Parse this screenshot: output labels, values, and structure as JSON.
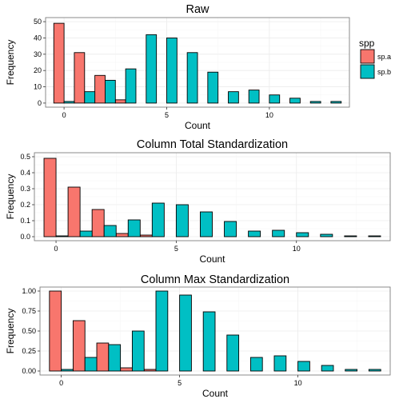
{
  "legend": {
    "title": "spp",
    "items": [
      {
        "label": "sp.a",
        "color": "#F8766D"
      },
      {
        "label": "sp.b",
        "color": "#00BFC4"
      }
    ]
  },
  "chart_data": [
    {
      "type": "bar",
      "title": "Raw",
      "xlabel": "Count",
      "ylabel": "Frequency",
      "x": [
        0,
        1,
        2,
        3,
        4,
        5,
        6,
        7,
        8,
        9,
        10,
        11,
        12,
        13
      ],
      "xticks": [
        "0",
        "5",
        "10"
      ],
      "yticks": [
        "0",
        "10",
        "20",
        "30",
        "40",
        "50"
      ],
      "ylim": [
        0,
        50
      ],
      "series": [
        {
          "name": "sp.a",
          "values": [
            49,
            31,
            17,
            2,
            null,
            null,
            null,
            null,
            null,
            null,
            null,
            null,
            null,
            null
          ]
        },
        {
          "name": "sp.b",
          "values": [
            1,
            7,
            14,
            21,
            42,
            40,
            31,
            19,
            7,
            8,
            5,
            3,
            1,
            1
          ]
        }
      ]
    },
    {
      "type": "bar",
      "title": "Column Total Standardization",
      "xlabel": "Count",
      "ylabel": "Frequency",
      "x": [
        0,
        1,
        2,
        3,
        4,
        5,
        6,
        7,
        8,
        9,
        10,
        11,
        12,
        13
      ],
      "xticks": [
        "0",
        "5",
        "10"
      ],
      "yticks": [
        "0.0",
        "0.1",
        "0.2",
        "0.3",
        "0.4",
        "0.5"
      ],
      "ylim": [
        0,
        0.5
      ],
      "series": [
        {
          "name": "sp.a",
          "values": [
            0.49,
            0.31,
            0.17,
            0.02,
            0.01,
            null,
            null,
            null,
            null,
            null,
            null,
            null,
            null,
            null
          ]
        },
        {
          "name": "sp.b",
          "values": [
            0.005,
            0.035,
            0.07,
            0.105,
            0.21,
            0.2,
            0.155,
            0.095,
            0.035,
            0.04,
            0.025,
            0.015,
            0.005,
            0.005
          ]
        }
      ]
    },
    {
      "type": "bar",
      "title": "Column Max Standardization",
      "xlabel": "Count",
      "ylabel": "Frequency",
      "x": [
        0,
        1,
        2,
        3,
        4,
        5,
        6,
        7,
        8,
        9,
        10,
        11,
        12,
        13
      ],
      "xticks": [
        "0",
        "5",
        "10"
      ],
      "yticks": [
        "0.00",
        "0.25",
        "0.50",
        "0.75",
        "1.00"
      ],
      "ylim": [
        0,
        1
      ],
      "series": [
        {
          "name": "sp.a",
          "values": [
            1.0,
            0.63,
            0.35,
            0.04,
            0.02,
            null,
            null,
            null,
            null,
            null,
            null,
            null,
            null,
            null
          ]
        },
        {
          "name": "sp.b",
          "values": [
            0.02,
            0.17,
            0.33,
            0.5,
            1.0,
            0.95,
            0.74,
            0.45,
            0.17,
            0.19,
            0.12,
            0.07,
            0.02,
            0.02
          ]
        }
      ]
    }
  ]
}
